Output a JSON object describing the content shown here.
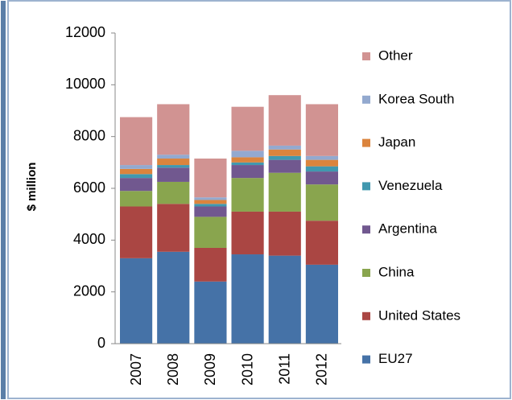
{
  "chart_data": {
    "type": "bar",
    "stacked": true,
    "y_label": "$ million",
    "categories": [
      "2007",
      "2008",
      "2009",
      "2010",
      "2011",
      "2012"
    ],
    "series": [
      {
        "name": "EU27",
        "color": "#4572a7",
        "values": [
          3300,
          3550,
          2400,
          3450,
          3400,
          3050
        ]
      },
      {
        "name": "United States",
        "color": "#aa4643",
        "values": [
          2000,
          1850,
          1300,
          1650,
          1700,
          1700
        ]
      },
      {
        "name": "China",
        "color": "#89a54e",
        "values": [
          600,
          850,
          1200,
          1300,
          1500,
          1400
        ]
      },
      {
        "name": "Argentina",
        "color": "#71588f",
        "values": [
          500,
          550,
          400,
          500,
          500,
          500
        ]
      },
      {
        "name": "Venezuela",
        "color": "#4198af",
        "values": [
          150,
          100,
          100,
          100,
          150,
          200
        ]
      },
      {
        "name": "Japan",
        "color": "#db843d",
        "values": [
          200,
          250,
          150,
          200,
          250,
          250
        ]
      },
      {
        "name": "Korea South",
        "color": "#93a9cf",
        "values": [
          150,
          150,
          100,
          250,
          150,
          150
        ]
      },
      {
        "name": "Other",
        "color": "#d19392",
        "values": [
          1850,
          1950,
          1500,
          1700,
          1950,
          2000
        ]
      }
    ],
    "ylim": [
      0,
      12000
    ],
    "yticks": [
      0,
      2000,
      4000,
      6000,
      8000,
      10000,
      12000
    ],
    "legend": "right"
  }
}
